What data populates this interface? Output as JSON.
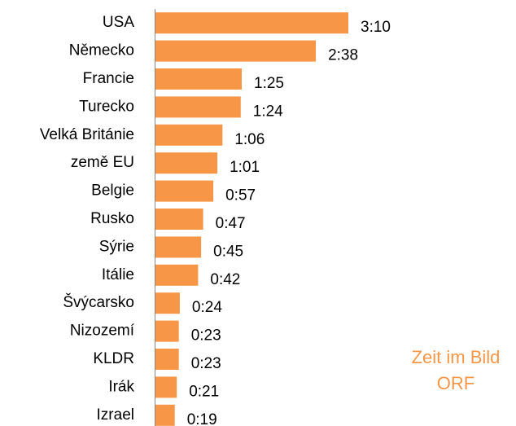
{
  "chart_data": {
    "type": "bar",
    "orientation": "horizontal",
    "categories": [
      "USA",
      "Německo",
      "Francie",
      "Turecko",
      "Velká Británie",
      "země EU",
      "Belgie",
      "Rusko",
      "Sýrie",
      "Itálie",
      "Švýcarsko",
      "Nizozemí",
      "KLDR",
      "Irák",
      "Izrael"
    ],
    "values": [
      190,
      158,
      85,
      84,
      66,
      61,
      57,
      47,
      45,
      42,
      24,
      23,
      23,
      21,
      19
    ],
    "value_labels": [
      "3:10",
      "2:38",
      "1:25",
      "1:24",
      "1:06",
      "1:01",
      "0:57",
      "0:47",
      "0:45",
      "0:42",
      "0:24",
      "0:23",
      "0:23",
      "0:21",
      "0:19"
    ],
    "color": "#f79646",
    "annotation": [
      "Zeit im Bild",
      "ORF"
    ]
  }
}
